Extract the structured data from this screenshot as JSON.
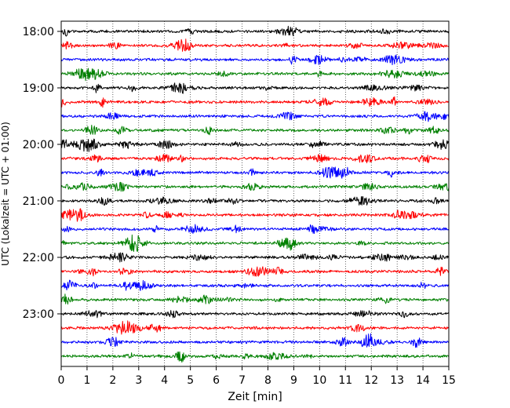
{
  "chart_data": {
    "type": "line",
    "subtype": "helicorder",
    "xlabel": "Zeit  [min]",
    "ylabel": "UTC (Lokalzeit = UTC + 01:00)",
    "xlim": [
      0,
      15
    ],
    "x_ticks": [
      0,
      1,
      2,
      3,
      4,
      5,
      6,
      7,
      8,
      9,
      10,
      11,
      12,
      13,
      14,
      15
    ],
    "x_tick_labels": [
      "0",
      "1",
      "2",
      "3",
      "4",
      "5",
      "6",
      "7",
      "8",
      "9",
      "10",
      "11",
      "12",
      "13",
      "14",
      "15"
    ],
    "y_tick_labels": [
      "18:00",
      "19:00",
      "20:00",
      "21:00",
      "22:00",
      "23:00"
    ],
    "traces_per_hour": 4,
    "trace_minutes": 15,
    "grid": "vertical dotted lines at each minute",
    "trace_colors": [
      "#000000",
      "#ff0000",
      "#0000ff",
      "#008000"
    ],
    "series": [
      {
        "name": "",
        "start": "18:00",
        "color": "#000000"
      },
      {
        "name": "",
        "start": "18:15",
        "color": "#ff0000"
      },
      {
        "name": "",
        "start": "18:30",
        "color": "#0000ff"
      },
      {
        "name": "",
        "start": "18:45",
        "color": "#008000"
      },
      {
        "name": "",
        "start": "19:00",
        "color": "#000000"
      },
      {
        "name": "",
        "start": "19:15",
        "color": "#ff0000"
      },
      {
        "name": "",
        "start": "19:30",
        "color": "#0000ff"
      },
      {
        "name": "",
        "start": "19:45",
        "color": "#008000"
      },
      {
        "name": "",
        "start": "20:00",
        "color": "#000000"
      },
      {
        "name": "",
        "start": "20:15",
        "color": "#ff0000"
      },
      {
        "name": "",
        "start": "20:30",
        "color": "#0000ff"
      },
      {
        "name": "",
        "start": "20:45",
        "color": "#008000"
      },
      {
        "name": "",
        "start": "21:00",
        "color": "#000000"
      },
      {
        "name": "",
        "start": "21:15",
        "color": "#ff0000"
      },
      {
        "name": "",
        "start": "21:30",
        "color": "#0000ff"
      },
      {
        "name": "",
        "start": "21:45",
        "color": "#008000"
      },
      {
        "name": "",
        "start": "22:00",
        "color": "#000000"
      },
      {
        "name": "",
        "start": "22:15",
        "color": "#ff0000"
      },
      {
        "name": "",
        "start": "22:30",
        "color": "#0000ff"
      },
      {
        "name": "",
        "start": "22:45",
        "color": "#008000"
      },
      {
        "name": "",
        "start": "23:00",
        "color": "#000000"
      },
      {
        "name": "",
        "start": "23:15",
        "color": "#ff0000"
      },
      {
        "name": "",
        "start": "23:30",
        "color": "#0000ff"
      },
      {
        "name": "",
        "start": "23:45",
        "color": "#008000"
      }
    ]
  }
}
